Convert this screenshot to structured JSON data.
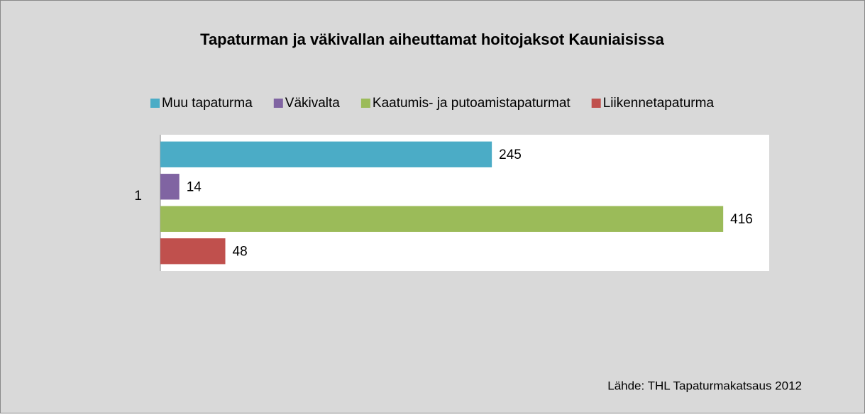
{
  "chart_data": {
    "type": "bar",
    "orientation": "horizontal",
    "title": "Tapaturman ja väkivallan aiheuttamat hoitojaksot Kauniaisissa",
    "categories": [
      "1"
    ],
    "series": [
      {
        "name": "Muu tapaturma",
        "color": "#4bacc6",
        "values": [
          245
        ]
      },
      {
        "name": "Väkivalta",
        "color": "#8064a2",
        "values": [
          14
        ]
      },
      {
        "name": "Kaatumis- ja putoamistapaturmat",
        "color": "#9bbb59",
        "values": [
          416
        ]
      },
      {
        "name": "Liikennetapaturma",
        "color": "#c0504d",
        "values": [
          48
        ]
      }
    ],
    "xlim": [
      0,
      450
    ],
    "legend": "top",
    "annotation": "Lähde: THL Tapaturmakatsaus 2012"
  }
}
